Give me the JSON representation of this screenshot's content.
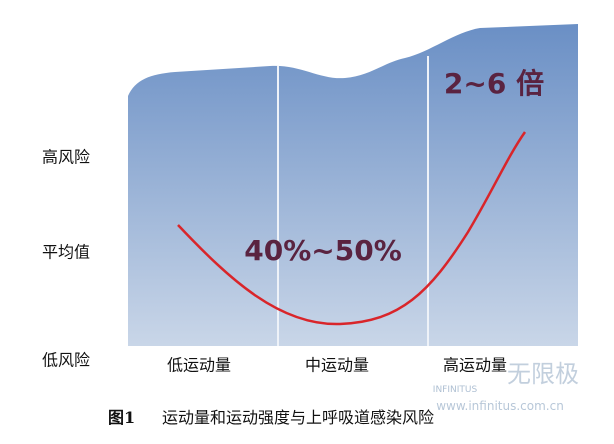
{
  "figure": {
    "y_labels": [
      "高风险",
      "平均值",
      "低风险"
    ],
    "categories": [
      "低运动量",
      "中运动量",
      "高运动量"
    ],
    "annotations": [
      "40%~50%",
      "2~6 倍"
    ],
    "caption": {
      "number": "图1",
      "text": "运动量和运动强度与上呼吸道感染风险"
    },
    "watermark": {
      "brand": "INFINITUS",
      "name": "无限极",
      "url": "www.infinitus.com.cn"
    }
  }
}
